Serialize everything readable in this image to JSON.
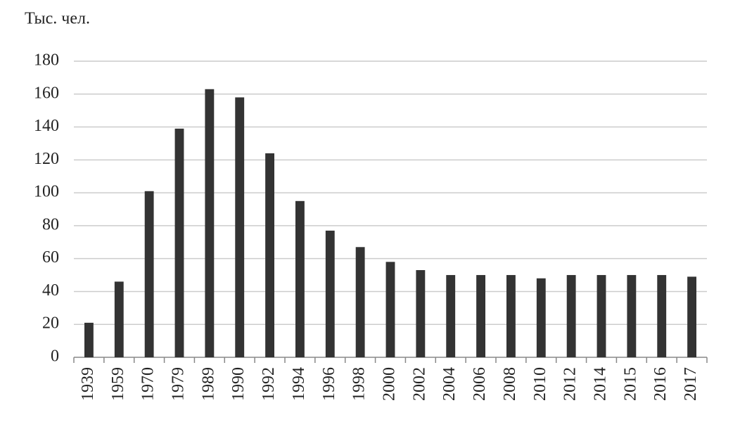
{
  "chart_data": {
    "type": "bar",
    "title": "Тыс. чел.",
    "categories": [
      "1939",
      "1959",
      "1970",
      "1979",
      "1989",
      "1990",
      "1992",
      "1994",
      "1996",
      "1998",
      "2000",
      "2002",
      "2004",
      "2006",
      "2008",
      "2010",
      "2012",
      "2014",
      "2015",
      "2016",
      "2017"
    ],
    "values": [
      21,
      46,
      101,
      139,
      163,
      158,
      124,
      95,
      77,
      67,
      58,
      53,
      50,
      50,
      50,
      48,
      50,
      50,
      50,
      50,
      49
    ],
    "color": "#333333",
    "ylim": [
      0,
      180
    ],
    "yticks": [
      0,
      20,
      40,
      60,
      80,
      100,
      120,
      140,
      160,
      180
    ],
    "grid": true
  }
}
